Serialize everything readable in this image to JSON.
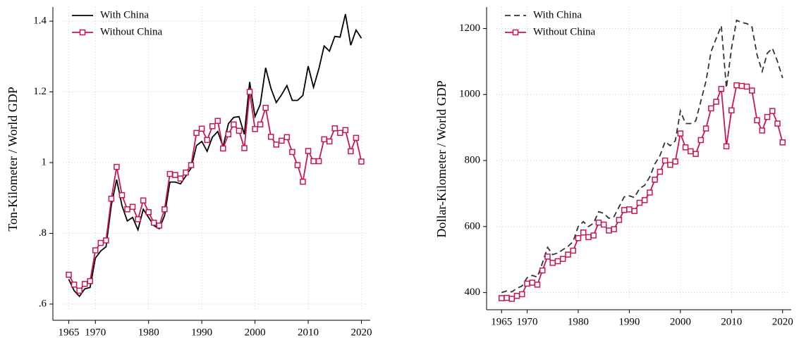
{
  "chart_data": [
    {
      "type": "line",
      "y_label": "Ton-Kilometer / World GDP",
      "x": [
        1965,
        1966,
        1967,
        1968,
        1969,
        1970,
        1971,
        1972,
        1973,
        1974,
        1975,
        1976,
        1977,
        1978,
        1979,
        1980,
        1981,
        1982,
        1983,
        1984,
        1985,
        1986,
        1987,
        1988,
        1989,
        1990,
        1991,
        1992,
        1993,
        1994,
        1995,
        1996,
        1997,
        1998,
        1999,
        2000,
        2001,
        2002,
        2003,
        2004,
        2005,
        2006,
        2007,
        2008,
        2009,
        2010,
        2011,
        2012,
        2013,
        2014,
        2015,
        2016,
        2017,
        2018,
        2019,
        2020
      ],
      "series": [
        {
          "name": "With China",
          "color": "#000000",
          "style": "solid",
          "marker": "none",
          "values": [
            0.67,
            0.638,
            0.622,
            0.643,
            0.647,
            0.73,
            0.75,
            0.762,
            0.88,
            0.952,
            0.878,
            0.835,
            0.845,
            0.81,
            0.868,
            0.845,
            0.822,
            0.813,
            0.85,
            0.945,
            0.945,
            0.94,
            0.962,
            0.985,
            1.048,
            1.06,
            1.032,
            1.072,
            1.088,
            1.045,
            1.11,
            1.128,
            1.13,
            1.08,
            1.228,
            1.13,
            1.165,
            1.268,
            1.21,
            1.17,
            1.192,
            1.218,
            1.176,
            1.176,
            1.19,
            1.273,
            1.213,
            1.265,
            1.33,
            1.315,
            1.357,
            1.355,
            1.42,
            1.332,
            1.375,
            1.352
          ]
        },
        {
          "name": "Without China",
          "color": "#c8174b",
          "style": "solid",
          "marker": "square",
          "values": [
            0.683,
            0.655,
            0.638,
            0.657,
            0.665,
            0.752,
            0.773,
            0.78,
            0.898,
            0.988,
            0.908,
            0.868,
            0.875,
            0.84,
            0.893,
            0.86,
            0.83,
            0.822,
            0.868,
            0.968,
            0.965,
            0.955,
            0.972,
            0.993,
            1.084,
            1.096,
            1.064,
            1.103,
            1.118,
            1.04,
            1.08,
            1.108,
            1.09,
            1.041,
            1.2,
            1.095,
            1.108,
            1.155,
            1.073,
            1.051,
            1.062,
            1.072,
            1.03,
            0.993,
            0.946,
            1.033,
            1.004,
            1.004,
            1.066,
            1.06,
            1.097,
            1.084,
            1.092,
            1.032,
            1.07,
            1.003
          ]
        }
      ],
      "xlim": [
        1964,
        2021
      ],
      "xticks": [
        1965,
        1970,
        1980,
        1990,
        2000,
        2010,
        2020
      ],
      "ylim": [
        0.58,
        1.44
      ],
      "yticks": [
        {
          "value": 0.6,
          "label": ".6"
        },
        {
          "value": 0.8,
          "label": ".8"
        },
        1,
        1.2,
        1.4
      ],
      "grid": true,
      "legend": "top-left"
    },
    {
      "type": "line",
      "y_label": "Dollar-Kilometer / World GDP",
      "x": [
        1965,
        1966,
        1967,
        1968,
        1969,
        1970,
        1971,
        1972,
        1973,
        1974,
        1975,
        1976,
        1977,
        1978,
        1979,
        1980,
        1981,
        1982,
        1983,
        1984,
        1985,
        1986,
        1987,
        1988,
        1989,
        1990,
        1991,
        1992,
        1993,
        1994,
        1995,
        1996,
        1997,
        1998,
        1999,
        2000,
        2001,
        2002,
        2003,
        2004,
        2005,
        2006,
        2007,
        2008,
        2009,
        2010,
        2011,
        2012,
        2013,
        2014,
        2015,
        2016,
        2017,
        2018,
        2019,
        2020
      ],
      "series": [
        {
          "name": "With China",
          "color": "#333333",
          "style": "dashed",
          "marker": "none",
          "values": [
            400,
            405,
            402,
            413,
            420,
            445,
            452,
            447,
            490,
            537,
            515,
            520,
            530,
            540,
            555,
            600,
            615,
            600,
            610,
            645,
            640,
            625,
            630,
            660,
            690,
            693,
            688,
            715,
            725,
            750,
            790,
            815,
            857,
            845,
            860,
            950,
            912,
            912,
            920,
            980,
            1040,
            1130,
            1170,
            1208,
            1020,
            1140,
            1225,
            1218,
            1215,
            1205,
            1120,
            1070,
            1125,
            1140,
            1100,
            1050
          ]
        },
        {
          "name": "Without China",
          "color": "#c8174b",
          "style": "solid",
          "marker": "square",
          "values": [
            383,
            384,
            381,
            390,
            395,
            427,
            430,
            424,
            467,
            509,
            490,
            495,
            502,
            515,
            527,
            565,
            582,
            568,
            573,
            612,
            606,
            588,
            592,
            620,
            650,
            652,
            647,
            672,
            680,
            703,
            742,
            766,
            800,
            787,
            797,
            882,
            840,
            828,
            820,
            862,
            897,
            958,
            978,
            1017,
            843,
            952,
            1028,
            1026,
            1024,
            1012,
            922,
            891,
            932,
            950,
            912,
            855
          ]
        }
      ],
      "xlim": [
        1964,
        2021
      ],
      "xticks": [
        1965,
        1970,
        1980,
        1990,
        2000,
        2010,
        2020
      ],
      "ylim": [
        380,
        1265
      ],
      "yticks": [
        400,
        600,
        800,
        1000,
        1200
      ],
      "grid": true,
      "legend": "top-left"
    }
  ]
}
